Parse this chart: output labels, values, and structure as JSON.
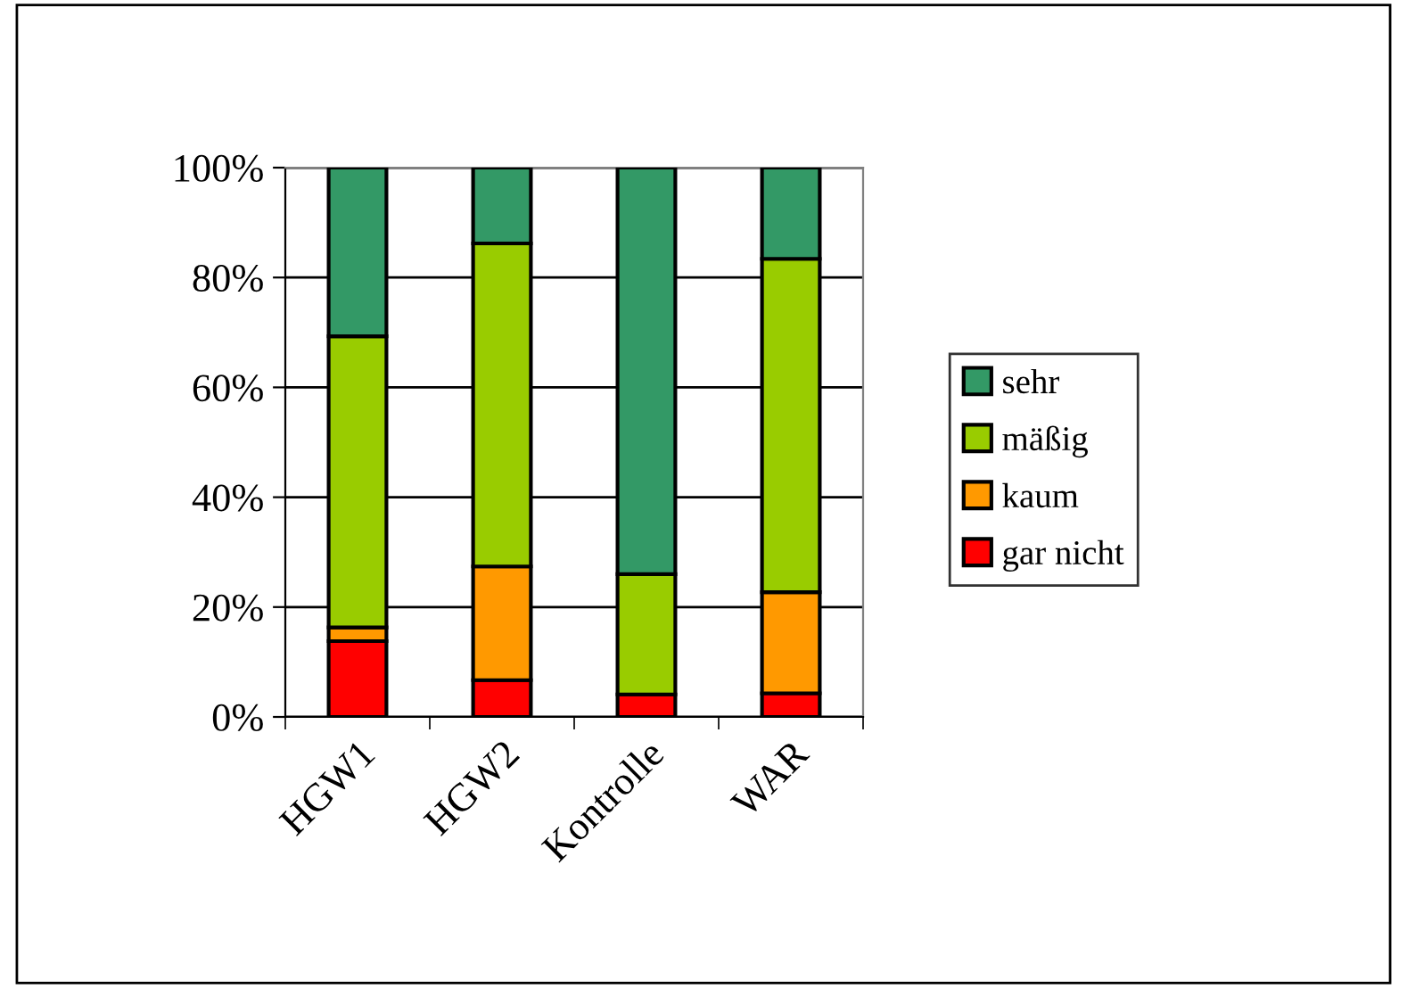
{
  "chart_data": {
    "type": "bar",
    "stacked": true,
    "categories": [
      "HGW1",
      "HGW2",
      "Kontrolle",
      "WAR"
    ],
    "series": [
      {
        "name": "gar nicht",
        "color": "#ff0000",
        "values": [
          13.8,
          6.7,
          4.1,
          4.3
        ]
      },
      {
        "name": "kaum",
        "color": "#ff9900",
        "values": [
          2.5,
          20.7,
          null,
          18.4
        ]
      },
      {
        "name": "mäßig",
        "color": "#99cc00",
        "values": [
          53.0,
          58.8,
          21.9,
          60.7
        ]
      },
      {
        "name": "sehr",
        "color": "#339966",
        "values": [
          30.7,
          13.8,
          74.0,
          16.6
        ]
      }
    ],
    "ylim": [
      0,
      100
    ],
    "yticks": [
      {
        "value": 0,
        "label": "0%"
      },
      {
        "value": 20,
        "label": "20%"
      },
      {
        "value": 40,
        "label": "40%"
      },
      {
        "value": 60,
        "label": "60%"
      },
      {
        "value": 80,
        "label": "80%"
      },
      {
        "value": 100,
        "label": "100%"
      }
    ],
    "grid": "y",
    "legend": "right"
  }
}
